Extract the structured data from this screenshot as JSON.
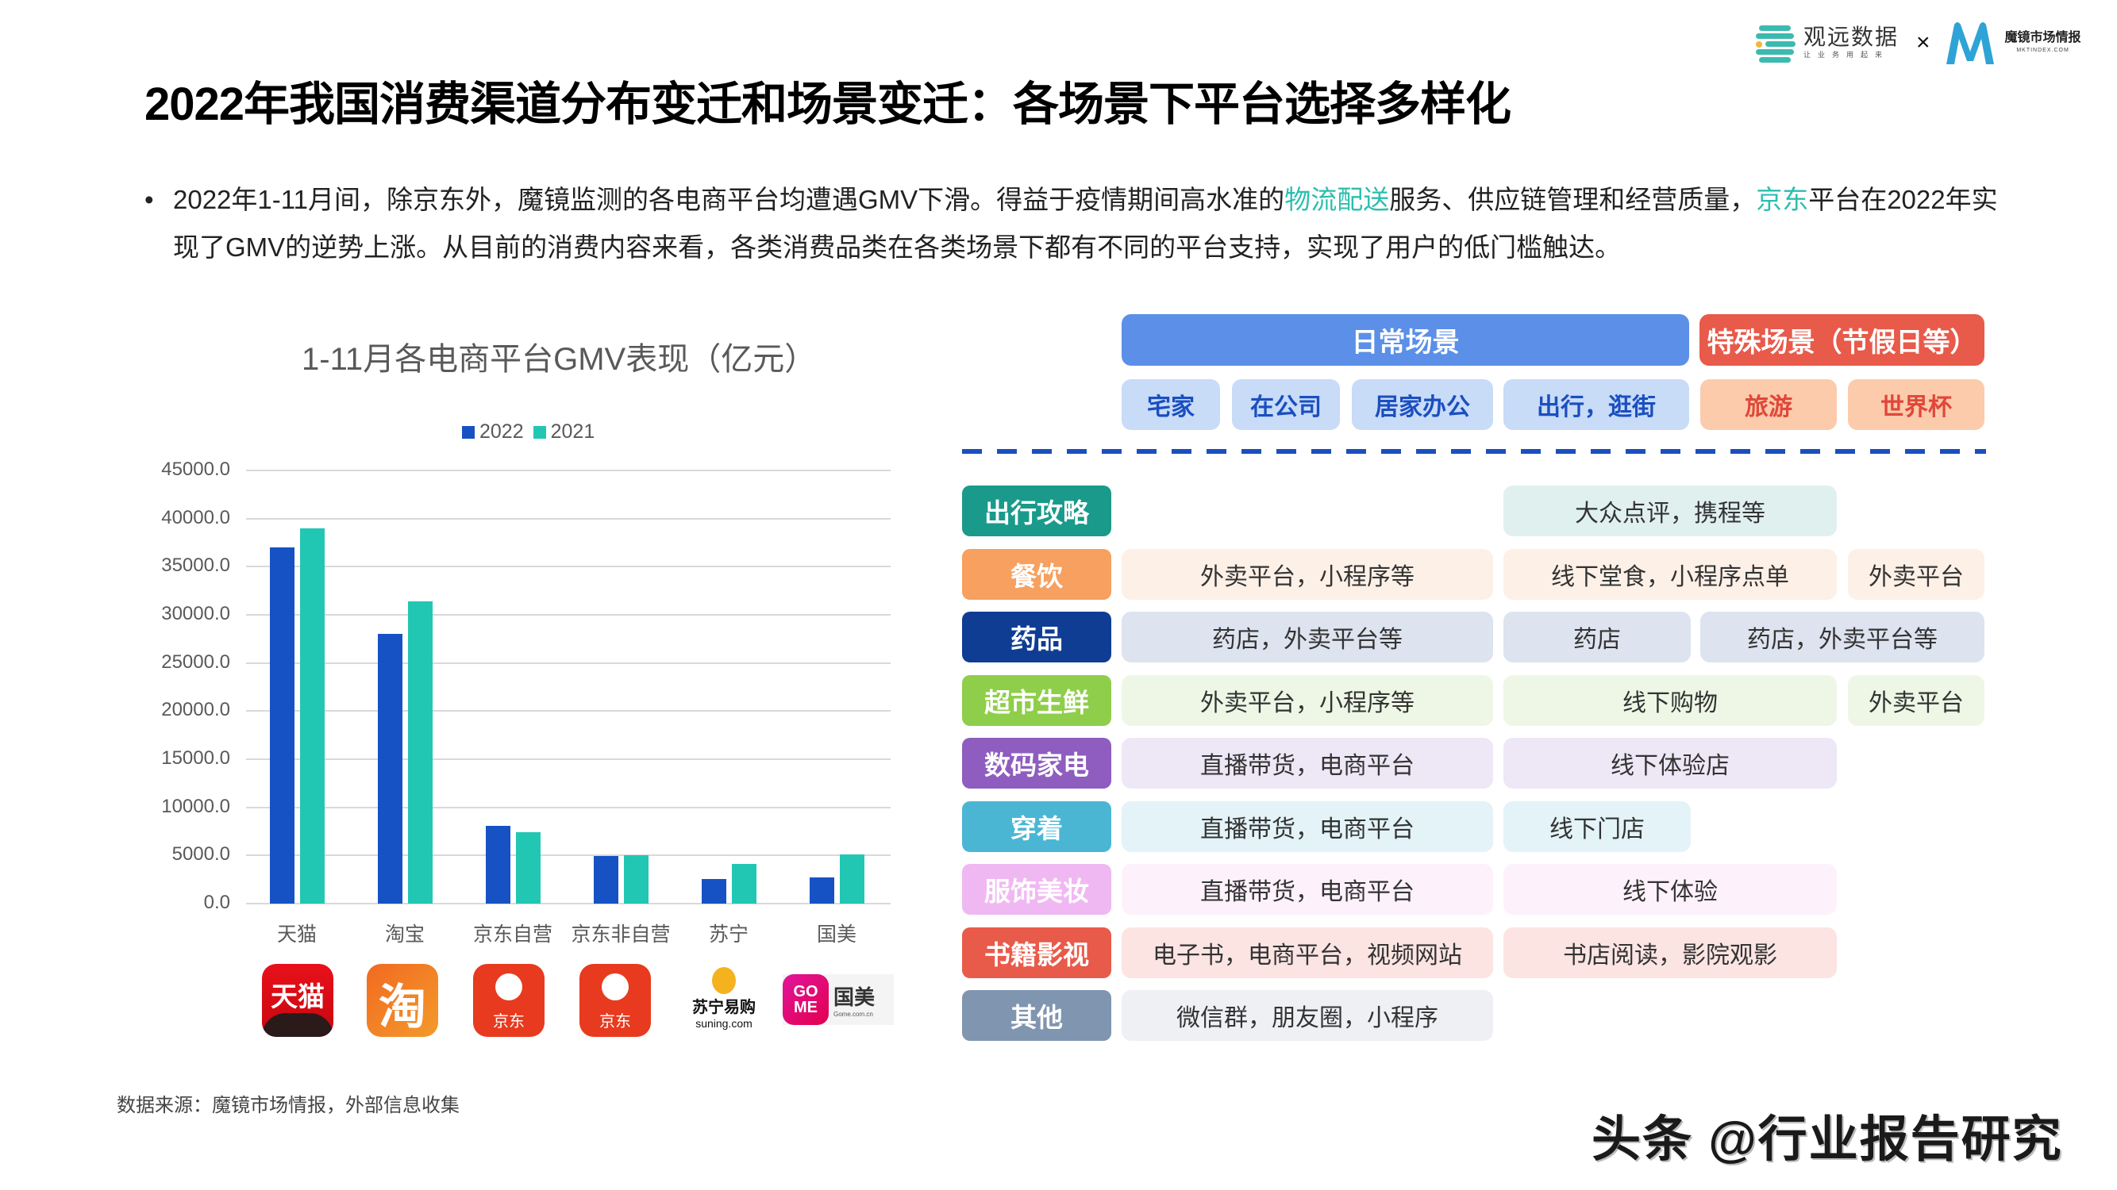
{
  "header": {
    "brand1_name": "观远数据",
    "brand1_slogan": "让业务用起来",
    "times": "×",
    "brand2_name": "魔镜市场情报",
    "brand2_url": "MKTINDEX.COM"
  },
  "title": "2022年我国消费渠道分布变迁和场景变迁：各场景下平台选择多样化",
  "bullet": {
    "dot": "•",
    "part1": "2022年1-11月间，除京东外，魔镜监测的各电商平台均遭遇GMV下滑。得益于疫情期间高水准的",
    "hl1": "物流配送",
    "part2": "服务、供应链管理和经营质量，",
    "hl2": "京东",
    "part3": "平台在2022年实现了GMV的逆势上涨。从目前的消费内容来看，各类消费品类在各类场景下都有不同的平台支持，实现了用户的低门槛触达。"
  },
  "colors": {
    "series_2022": "#1652c4",
    "series_2021": "#22c7b3",
    "highlight": "#2bbfae",
    "daily_header": "#5b8fe8",
    "special_header": "#e85a4a"
  },
  "chart_data": {
    "type": "bar",
    "title": "1-11月各电商平台GMV表现（亿元）",
    "xlabel": "",
    "ylabel": "",
    "categories": [
      "天猫",
      "淘宝",
      "京东自营",
      "京东非自营",
      "苏宁",
      "国美"
    ],
    "series": [
      {
        "name": "2022",
        "values": [
          37000,
          28000,
          8050,
          4950,
          2550,
          2700
        ]
      },
      {
        "name": "2021",
        "values": [
          39000,
          31400,
          7400,
          5050,
          4100,
          5080
        ]
      }
    ],
    "ylim": [
      0,
      45000
    ],
    "yticks": [
      "0.0",
      "5000.0",
      "10000.0",
      "15000.0",
      "20000.0",
      "25000.0",
      "30000.0",
      "35000.0",
      "40000.0",
      "45000.0"
    ],
    "legend": [
      "2022",
      "2021"
    ],
    "legend_position": "top",
    "grid": true
  },
  "logos": [
    {
      "name": "tmall",
      "text": "天猫"
    },
    {
      "name": "taobao",
      "text": "淘"
    },
    {
      "name": "jd-self",
      "text": "京东"
    },
    {
      "name": "jd-nonself",
      "text": "京东"
    },
    {
      "name": "suning",
      "text": "苏宁易购",
      "sub": "suning.com"
    },
    {
      "name": "gome",
      "text": "GO ME",
      "sub_cn": "国美",
      "sub": "Gome.com.cn"
    }
  ],
  "source": "数据来源：魔镜市场情报，外部信息收集",
  "watermark": "头条 @行业报告研究",
  "scenes": {
    "daily": "日常场景",
    "special": "特殊场景（节假日等）",
    "daily_subs": [
      "宅家",
      "在公司",
      "居家办公",
      "出行，逛街"
    ],
    "special_subs": [
      "旅游",
      "世界杯"
    ]
  },
  "categories_table": [
    {
      "label": "出行攻略",
      "color": "#1a9a8a",
      "bg": "#e0f0ef",
      "cells": [
        {
          "col": "c2",
          "text": "大众点评，携程等"
        }
      ]
    },
    {
      "label": "餐饮",
      "color": "#f7a05f",
      "bg": "#fdf0e7",
      "cells": [
        {
          "col": "c1",
          "text": "外卖平台，小程序等"
        },
        {
          "col": "c2",
          "text": "线下堂食，小程序点单"
        },
        {
          "col": "c3",
          "text": "外卖平台"
        }
      ]
    },
    {
      "label": "药品",
      "color": "#0f3d94",
      "bg": "#dde3ef",
      "cells": [
        {
          "col": "c1",
          "text": "药店，外卖平台等"
        },
        {
          "col": "c2a",
          "text": "药店"
        },
        {
          "col": "c2b",
          "text": "药店，外卖平台等"
        }
      ]
    },
    {
      "label": "超市生鲜",
      "color": "#8fce4a",
      "bg": "#eef7e6",
      "cells": [
        {
          "col": "c1",
          "text": "外卖平台，小程序等"
        },
        {
          "col": "c2",
          "text": "线下购物"
        },
        {
          "col": "c3",
          "text": "外卖平台"
        }
      ]
    },
    {
      "label": "数码家电",
      "color": "#8e5dbf",
      "bg": "#ede7f6",
      "cells": [
        {
          "col": "c1",
          "text": "直播带货，电商平台"
        },
        {
          "col": "c2",
          "text": "线下体验店"
        }
      ]
    },
    {
      "label": "穿着",
      "color": "#4bb6d4",
      "bg": "#e3f3f8",
      "cells": [
        {
          "col": "c1",
          "text": "直播带货，电商平台"
        },
        {
          "col": "c2a",
          "text": "线下门店"
        }
      ]
    },
    {
      "label": "服饰美妆",
      "color": "#f0b8f2",
      "bg": "#fdf1fb",
      "cells": [
        {
          "col": "c1",
          "text": "直播带货，电商平台"
        },
        {
          "col": "c2",
          "text": "线下体验"
        }
      ]
    },
    {
      "label": "书籍影视",
      "color": "#e85a4a",
      "bg": "#fbe4e2",
      "cells": [
        {
          "col": "c1",
          "text": "电子书，电商平台，视频网站"
        },
        {
          "col": "c2",
          "text": "书店阅读，影院观影"
        }
      ]
    },
    {
      "label": "其他",
      "color": "#7f95b0",
      "bg": "#eef0f4",
      "cells": [
        {
          "col": "c1",
          "text": "微信群，朋友圈，小程序"
        }
      ]
    }
  ]
}
